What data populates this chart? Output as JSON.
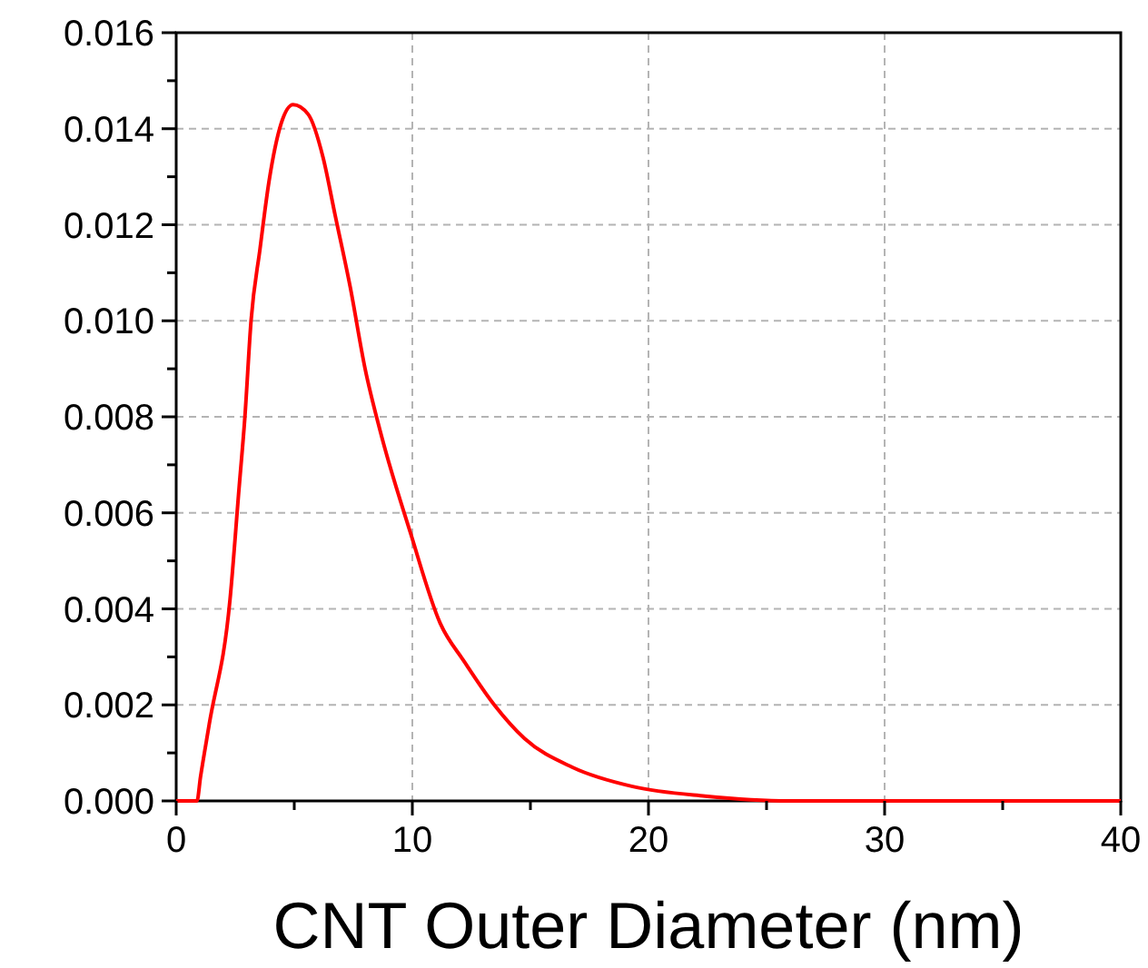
{
  "chart_data": {
    "type": "line",
    "xlabel": "CNT Outer Diameter (nm)",
    "x": [
      0,
      0.88,
      1.03,
      1.4,
      2.28,
      2.66,
      2.91,
      3.17,
      3.55,
      3.93,
      4.44,
      4.95,
      5.59,
      6.22,
      6.73,
      7.37,
      8.0,
      8.64,
      9.91,
      11.18,
      12.2,
      13.47,
      14.75,
      16.78,
      19.33,
      22.4,
      26,
      30,
      40
    ],
    "series": [
      {
        "color": "#ff0000",
        "values": [
          0,
          0,
          0.0005,
          0.0016,
          0.0042,
          0.0065,
          0.008,
          0.01,
          0.0115,
          0.0129,
          0.0141,
          0.0145,
          0.0143,
          0.0134,
          0.0122,
          0.0107,
          0.009,
          0.0077,
          0.0056,
          0.0037,
          0.0029,
          0.002,
          0.0013,
          0.0007,
          0.0003,
          0.0001,
          0,
          0,
          0
        ]
      }
    ],
    "xlim": [
      0,
      40
    ],
    "xticks": [
      0,
      {
        "value": 5,
        "label": null
      },
      10,
      {
        "value": 15,
        "label": null
      },
      20,
      {
        "value": 25,
        "label": null
      },
      30,
      {
        "value": 35,
        "label": null
      },
      40
    ],
    "ylim": [
      0,
      0.016
    ],
    "yticks": [
      {
        "value": 0,
        "label": "0.000"
      },
      {
        "value": 0.001,
        "label": null
      },
      {
        "value": 0.002,
        "label": "0.002"
      },
      {
        "value": 0.003,
        "label": null
      },
      {
        "value": 0.004,
        "label": "0.004"
      },
      {
        "value": 0.005,
        "label": null
      },
      {
        "value": 0.006,
        "label": "0.006"
      },
      {
        "value": 0.007,
        "label": null
      },
      {
        "value": 0.008,
        "label": "0.008"
      },
      {
        "value": 0.009,
        "label": null
      },
      {
        "value": 0.01,
        "label": "0.010"
      },
      {
        "value": 0.011,
        "label": null
      },
      {
        "value": 0.012,
        "label": "0.012"
      },
      {
        "value": 0.013,
        "label": null
      },
      {
        "value": 0.014,
        "label": "0.014"
      },
      {
        "value": 0.015,
        "label": null
      },
      {
        "value": 0.016,
        "label": "0.016"
      }
    ],
    "grid": true,
    "marker": "none",
    "line_style": "solid"
  }
}
